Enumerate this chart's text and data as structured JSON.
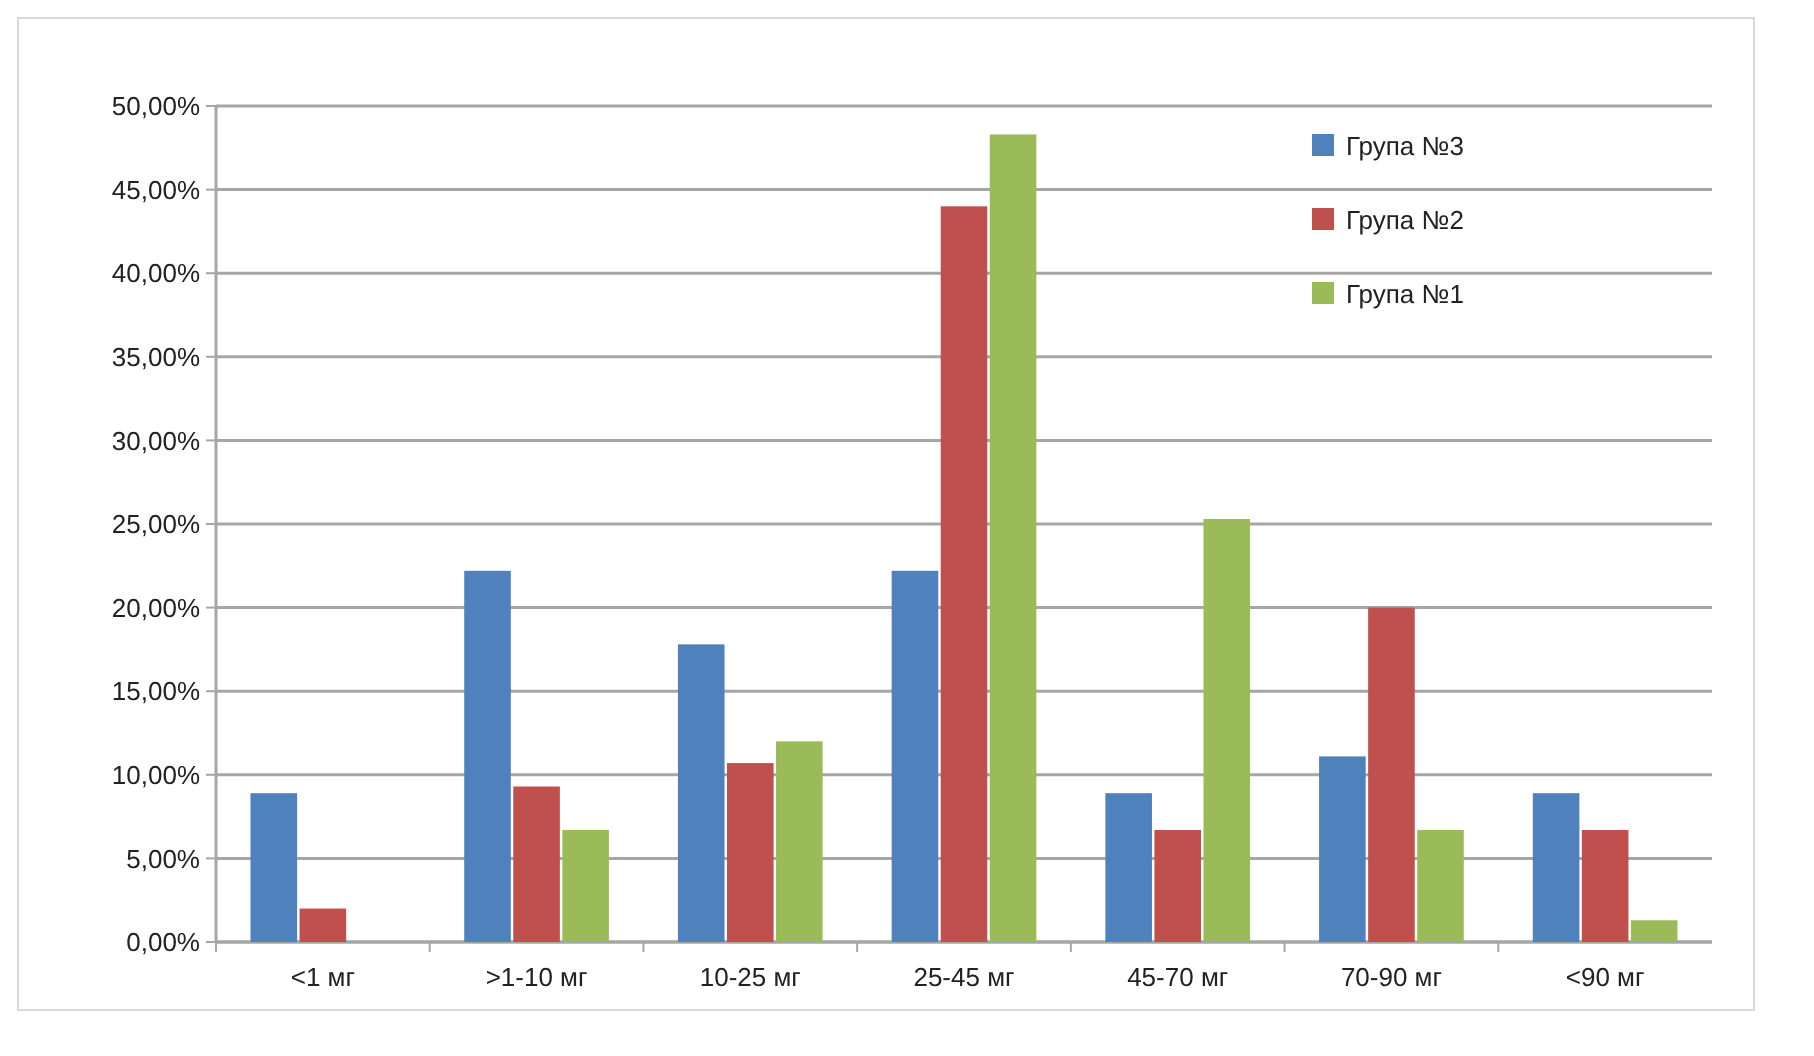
{
  "chart_data": {
    "type": "bar",
    "categories": [
      "<1 мг",
      ">1-10 мг",
      "10-25 мг",
      "25-45 мг",
      "45-70 мг",
      "70-90 мг",
      "<90 мг"
    ],
    "series": [
      {
        "name": "Група №3",
        "color": "#4f81bd",
        "values": [
          8.9,
          22.2,
          17.8,
          22.2,
          8.9,
          11.1,
          8.9
        ]
      },
      {
        "name": "Група №2",
        "color": "#c0504d",
        "values": [
          2.0,
          9.3,
          10.7,
          44.0,
          6.7,
          20.0,
          6.7
        ]
      },
      {
        "name": "Група №1",
        "color": "#9bbb59",
        "values": [
          0,
          6.7,
          12.0,
          48.3,
          25.3,
          6.7,
          1.3
        ]
      }
    ],
    "ylim": [
      0,
      50
    ],
    "yticks": [
      {
        "value": 0,
        "label": "0,00%"
      },
      {
        "value": 5,
        "label": "5,00%"
      },
      {
        "value": 10,
        "label": "10,00%"
      },
      {
        "value": 15,
        "label": "15,00%"
      },
      {
        "value": 20,
        "label": "20,00%"
      },
      {
        "value": 25,
        "label": "25,00%"
      },
      {
        "value": 30,
        "label": "30,00%"
      },
      {
        "value": 35,
        "label": "35,00%"
      },
      {
        "value": 40,
        "label": "40,00%"
      },
      {
        "value": 45,
        "label": "45,00%"
      },
      {
        "value": 50,
        "label": "50,00%"
      }
    ],
    "grid": "y",
    "legend": "top right"
  }
}
